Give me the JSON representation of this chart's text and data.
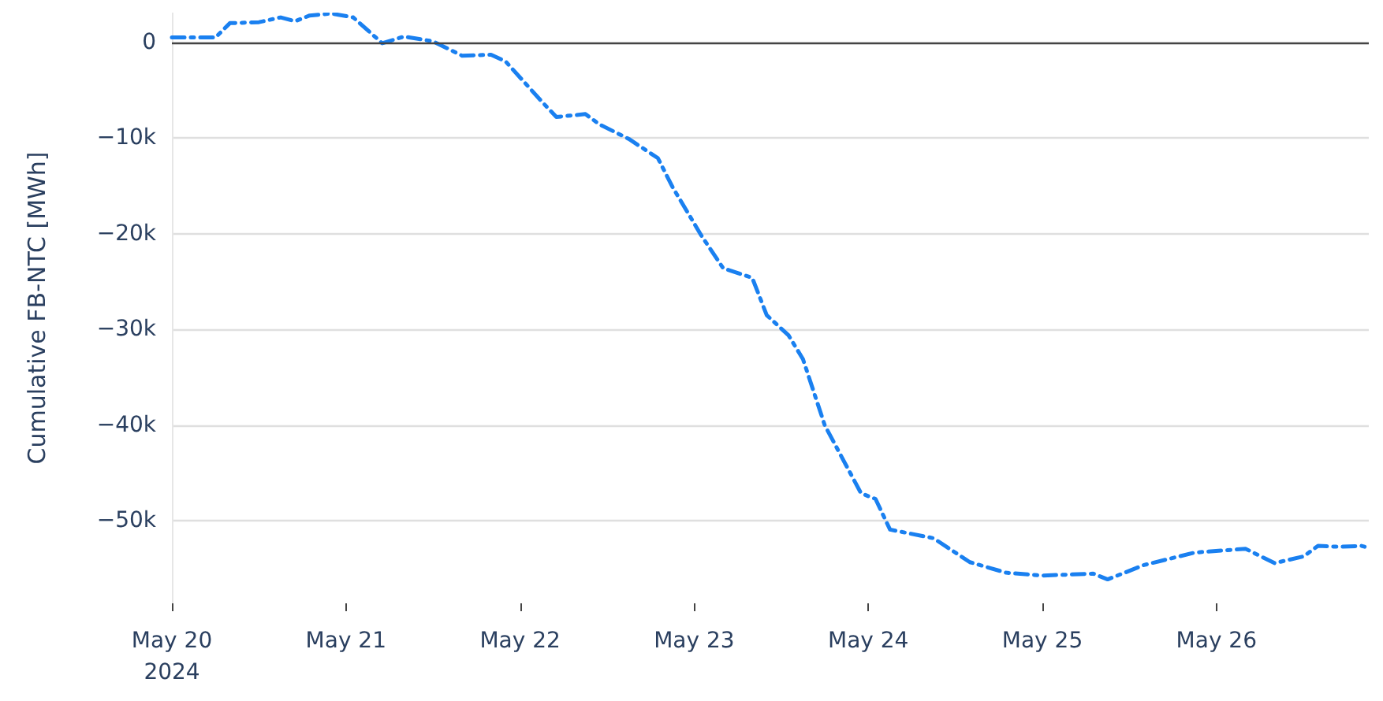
{
  "chart_data": {
    "type": "line",
    "ylabel": "Cumulative FB-NTC [MWh]",
    "x": [
      "2024-05-20T00:00",
      "2024-05-20T06:00",
      "2024-05-20T08:00",
      "2024-05-20T12:00",
      "2024-05-20T15:00",
      "2024-05-20T17:00",
      "2024-05-20T19:00",
      "2024-05-20T22:00",
      "2024-05-21T01:00",
      "2024-05-21T05:00",
      "2024-05-21T08:00",
      "2024-05-21T12:00",
      "2024-05-21T16:00",
      "2024-05-21T20:00",
      "2024-05-21T22:00",
      "2024-05-22T03:00",
      "2024-05-22T05:00",
      "2024-05-22T09:00",
      "2024-05-22T11:00",
      "2024-05-22T15:00",
      "2024-05-22T19:00",
      "2024-05-22T21:00",
      "2024-05-23T01:00",
      "2024-05-23T04:00",
      "2024-05-23T08:00",
      "2024-05-23T10:00",
      "2024-05-23T13:00",
      "2024-05-23T15:00",
      "2024-05-23T18:00",
      "2024-05-23T23:00",
      "2024-05-24T01:00",
      "2024-05-24T03:00",
      "2024-05-24T09:00",
      "2024-05-24T14:00",
      "2024-05-24T19:00",
      "2024-05-25T00:00",
      "2024-05-25T07:00",
      "2024-05-25T09:00",
      "2024-05-25T14:00",
      "2024-05-25T21:00",
      "2024-05-26T04:00",
      "2024-05-26T08:00",
      "2024-05-26T12:00",
      "2024-05-26T14:00",
      "2024-05-26T17:00",
      "2024-05-26T20:00",
      "2024-05-26T21:00"
    ],
    "series": [
      {
        "color": "#1a80f0",
        "values": [
          500,
          500,
          2000,
          2100,
          2600,
          2200,
          2800,
          3000,
          2600,
          -100,
          600,
          100,
          -1400,
          -1300,
          -2000,
          -6200,
          -7800,
          -7500,
          -8600,
          -10100,
          -12100,
          -15100,
          -20200,
          -23600,
          -24600,
          -28500,
          -30600,
          -33100,
          -40000,
          -47100,
          -47700,
          -50900,
          -51800,
          -54300,
          -55400,
          -55700,
          -55500,
          -56100,
          -54600,
          -53300,
          -52900,
          -54400,
          -53700,
          -52600,
          -52700,
          -52600,
          -52800
        ]
      }
    ],
    "xlim": [
      "2024-05-20T00:00",
      "2024-05-26T21:00"
    ],
    "xticks": [
      {
        "value": "2024-05-20T00:00",
        "label": "May 20\n2024"
      },
      {
        "value": "2024-05-21T00:00",
        "label": "May 21"
      },
      {
        "value": "2024-05-22T00:00",
        "label": "May 22"
      },
      {
        "value": "2024-05-23T00:00",
        "label": "May 23"
      },
      {
        "value": "2024-05-24T00:00",
        "label": "May 24"
      },
      {
        "value": "2024-05-25T00:00",
        "label": "May 25"
      },
      {
        "value": "2024-05-26T00:00",
        "label": "May 26"
      }
    ],
    "ylim": [
      -58600,
      3100
    ],
    "yticks": [
      0,
      {
        "value": -10000,
        "label": "−10k"
      },
      {
        "value": -20000,
        "label": "−20k"
      },
      {
        "value": -30000,
        "label": "−30k"
      },
      {
        "value": -40000,
        "label": "−40k"
      },
      {
        "value": -50000,
        "label": "−50k"
      }
    ],
    "ref_lines": [
      {
        "axis": "y",
        "value": 0,
        "color": "#444444"
      }
    ],
    "grid": "y",
    "marker": "none",
    "line_style": "dashed"
  }
}
